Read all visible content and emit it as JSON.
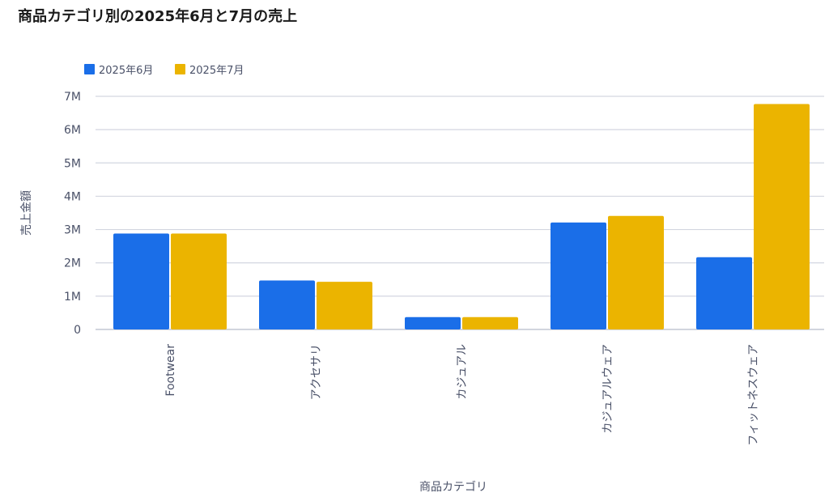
{
  "chart_data": {
    "type": "bar",
    "title": "商品カテゴリ別の2025年6月と7月の売上",
    "xlabel": "商品カテゴリ",
    "ylabel": "売上金額",
    "categories": [
      "Footwear",
      "アクセサリ",
      "カジュアル",
      "カジュアルウェア",
      "フィットネスウェア"
    ],
    "series": [
      {
        "name": "2025年6月",
        "color": "#1a6ee8",
        "values": [
          2880000,
          1470000,
          370000,
          3210000,
          2170000
        ]
      },
      {
        "name": "2025年7月",
        "color": "#ebb400",
        "values": [
          2880000,
          1430000,
          370000,
          3410000,
          6770000
        ]
      }
    ],
    "ylim": [
      0,
      7000000
    ],
    "yticks": [
      "0",
      "1M",
      "2M",
      "3M",
      "4M",
      "5M",
      "6M",
      "7M"
    ],
    "grid": true,
    "legend": "top-left"
  }
}
